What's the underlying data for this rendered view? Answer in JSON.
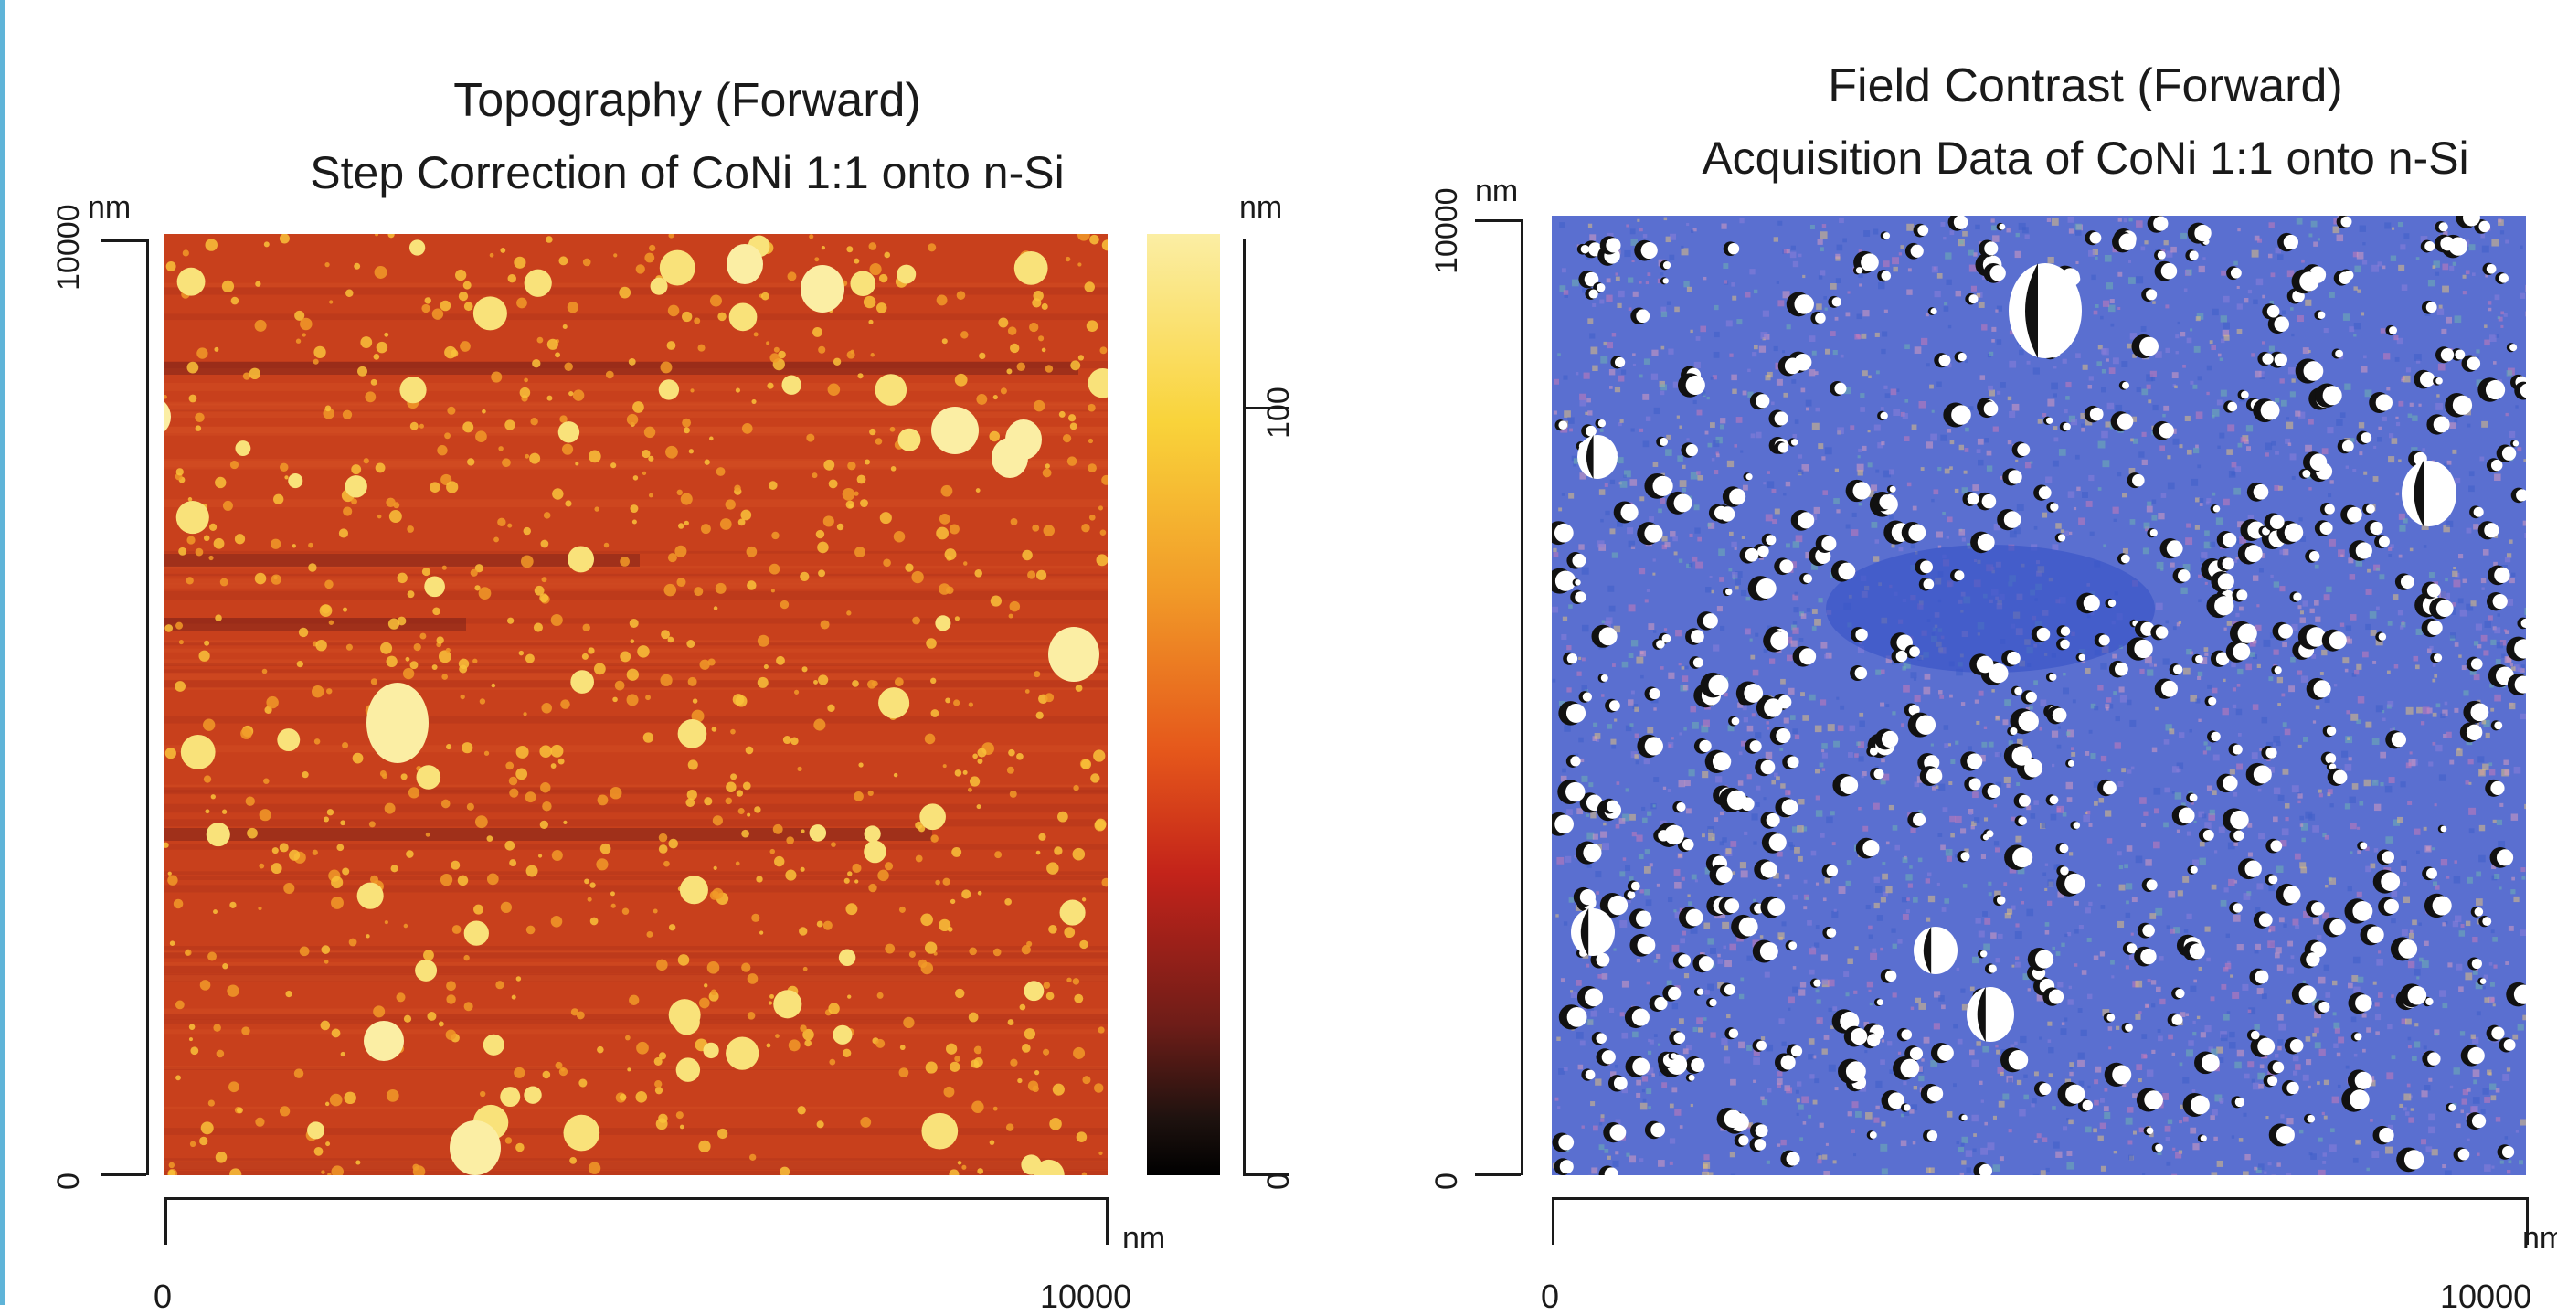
{
  "left_image": {
    "title": "Topography (Forward)",
    "subtitle": "Step Correction of CoNi 1:1 onto n-Si",
    "y_unit": "nm",
    "y_max": "10000",
    "y_min": "0",
    "x_unit": "nm",
    "x_min": "0",
    "x_max": "10000",
    "colorbar": {
      "unit": "nm",
      "tick_mid": "100",
      "tick_low": "0",
      "colors": [
        "#fbeea4",
        "#f9d33a",
        "#f19a28",
        "#e5571b",
        "#c3231a",
        "#6e1d18",
        "#000000"
      ]
    }
  },
  "right_image": {
    "title": "Field Contrast (Forward)",
    "subtitle": "Acquisition Data of CoNi 1:1 onto n-Si",
    "y_unit": "nm",
    "y_max": "10000",
    "y_min": "0",
    "x_unit": "nm",
    "x_min": "0",
    "x_max": "10000"
  },
  "colors": {
    "accent_rule": "#5fb4d8",
    "topo_background": "#c8401c",
    "field_background": "#5a6fd0"
  }
}
